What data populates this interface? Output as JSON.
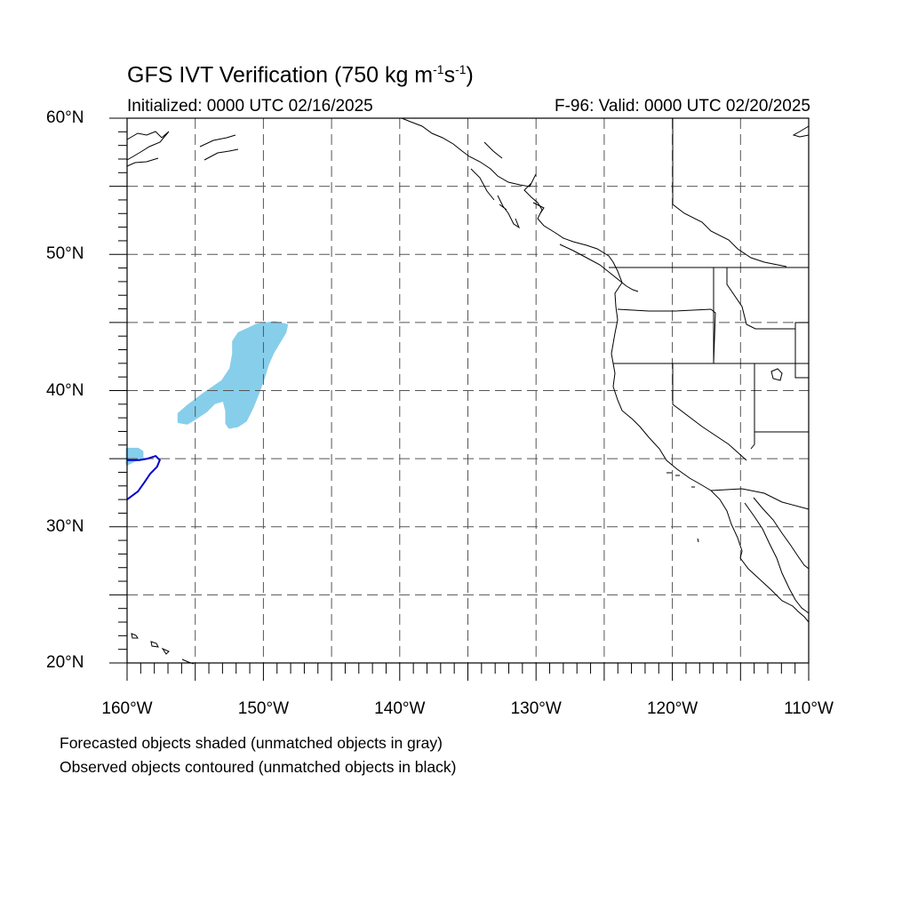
{
  "title": {
    "main": "GFS IVT Verification (750 kg m",
    "sup1": "-1",
    "mid": "s",
    "sup2": "-1",
    "end": ")"
  },
  "initialized": "Initialized: 0000 UTC 02/16/2025",
  "valid": "F-96: Valid: 0000 UTC 02/20/2025",
  "map": {
    "lon_range": [
      -160,
      -110
    ],
    "lat_range": [
      20,
      60
    ],
    "gridline_style": "dashed",
    "colors": {
      "forecast_fill": "#87ceeb",
      "observed_contour": "#0000cc",
      "coastline": "#000000",
      "grid": "#555555"
    }
  },
  "lat_labels": [
    {
      "lat": 60,
      "text": "60°N"
    },
    {
      "lat": 50,
      "text": "50°N"
    },
    {
      "lat": 40,
      "text": "40°N"
    },
    {
      "lat": 30,
      "text": "30°N"
    },
    {
      "lat": 20,
      "text": "20°N"
    }
  ],
  "lon_labels": [
    {
      "lon": -160,
      "text": "160°W"
    },
    {
      "lon": -150,
      "text": "150°W"
    },
    {
      "lon": -140,
      "text": "140°W"
    },
    {
      "lon": -130,
      "text": "130°W"
    },
    {
      "lon": -120,
      "text": "120°W"
    },
    {
      "lon": -110,
      "text": "110°W"
    }
  ],
  "forecast_objects": [
    {
      "id": "fc-1",
      "matched": true,
      "polygon": [
        [
          -151.8,
          44.2
        ],
        [
          -150.5,
          44.8
        ],
        [
          -149.2,
          45.0
        ],
        [
          -148.3,
          44.8
        ],
        [
          -148.4,
          44.3
        ],
        [
          -149.3,
          42.8
        ],
        [
          -149.7,
          41.9
        ],
        [
          -150.0,
          40.9
        ],
        [
          -150.4,
          39.8
        ],
        [
          -150.8,
          38.8
        ],
        [
          -151.3,
          37.8
        ],
        [
          -151.9,
          37.4
        ],
        [
          -152.5,
          37.3
        ],
        [
          -152.7,
          37.6
        ],
        [
          -152.7,
          38.5
        ],
        [
          -152.9,
          39.3
        ],
        [
          -153.6,
          39.1
        ],
        [
          -154.2,
          38.5
        ],
        [
          -155.1,
          37.9
        ],
        [
          -155.6,
          37.6
        ],
        [
          -156.2,
          37.7
        ],
        [
          -156.2,
          38.3
        ],
        [
          -155.5,
          38.9
        ],
        [
          -154.3,
          39.8
        ],
        [
          -153.0,
          40.7
        ],
        [
          -152.4,
          41.6
        ],
        [
          -152.2,
          42.7
        ],
        [
          -152.2,
          43.6
        ]
      ]
    },
    {
      "id": "fc-2",
      "matched": true,
      "polygon": [
        [
          -160.0,
          34.6
        ],
        [
          -159.4,
          34.9
        ],
        [
          -158.9,
          35.0
        ],
        [
          -158.9,
          35.5
        ],
        [
          -159.2,
          35.7
        ],
        [
          -160.0,
          35.7
        ]
      ]
    }
  ],
  "observed_objects": [
    {
      "id": "obs-1",
      "matched": true,
      "polyline": [
        [
          -160.0,
          32.0
        ],
        [
          -159.2,
          32.6
        ],
        [
          -158.7,
          33.3
        ],
        [
          -158.3,
          33.9
        ],
        [
          -157.8,
          34.4
        ],
        [
          -157.6,
          34.9
        ],
        [
          -157.9,
          35.2
        ],
        [
          -158.5,
          35.0
        ],
        [
          -159.1,
          34.9
        ],
        [
          -159.8,
          34.9
        ],
        [
          -160.0,
          34.9
        ]
      ]
    }
  ],
  "footer": {
    "line1": "Forecasted objects shaded (unmatched objects in gray)",
    "line2": "Observed objects contoured (unmatched objects in black)"
  }
}
